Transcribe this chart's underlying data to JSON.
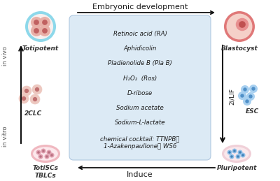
{
  "title": "Embryonic development",
  "bottom_arrow_label": "Induce",
  "right_arrow_label": "2i/LIF",
  "box_items": [
    "Retinoic acid (RA)",
    "Aphidicolin",
    "Pladienolide B (Pla B)",
    "H₂O₂  (Ros)",
    "D-ribose",
    "Sodium acetate",
    "Sodium-L-lactate",
    "chemical cocktail: TTNPB；\n1-Azakenpaullone； WS6"
  ],
  "labels": {
    "top_left": "Totipotent",
    "top_right": "Blastocyst",
    "mid_left": "2CLC",
    "mid_right": "ESC",
    "bot_left": "TotiSCs\nTBLCs",
    "bot_right": "Pluripotent"
  },
  "in_vivo_label": "in vivo",
  "in_vitro_label": "in vitro",
  "box_bg": "#dceaf5",
  "box_edge": "#b0c8e0",
  "fig_bg": "#ffffff",
  "arrow_color": "#111111",
  "text_color": "#1a1a1a",
  "label_color": "#333333"
}
